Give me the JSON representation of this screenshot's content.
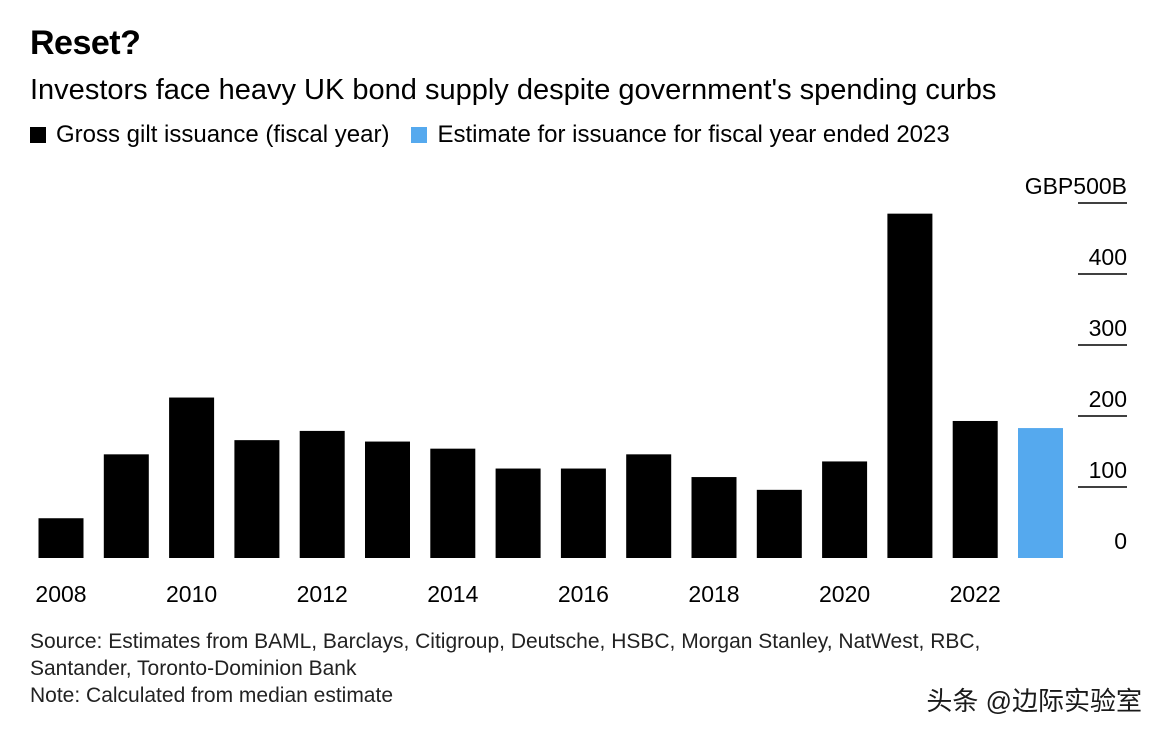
{
  "title": "Reset?",
  "subtitle": "Investors face heavy UK bond supply despite government's spending curbs",
  "legend": [
    {
      "label": "Gross gilt issuance (fiscal year)",
      "color": "#000000"
    },
    {
      "label": "Estimate for issuance for fiscal year ended 2023",
      "color": "#55a9ee"
    }
  ],
  "source_line1": "Source: Estimates from BAML, Barclays, Citigroup, Deutsche, HSBC, Morgan Stanley, NatWest, RBC,",
  "source_line2": "Santander, Toronto-Dominion Bank",
  "note": "Note: Calculated from median estimate",
  "watermark": "头条 @边际实验室",
  "chart_data": {
    "type": "bar",
    "categories": [
      "2008",
      "2009",
      "2010",
      "2011",
      "2012",
      "2013",
      "2014",
      "2015",
      "2016",
      "2017",
      "2018",
      "2019",
      "2020",
      "2021",
      "2022",
      "2023"
    ],
    "values": [
      56,
      146,
      226,
      166,
      179,
      164,
      154,
      126,
      126,
      146,
      114,
      96,
      136,
      485,
      193,
      183
    ],
    "estimate_index": 15,
    "x_tick_labels": [
      "2008",
      "",
      "2010",
      "",
      "2012",
      "",
      "2014",
      "",
      "2016",
      "",
      "2018",
      "",
      "2020",
      "",
      "2022",
      ""
    ],
    "y_ticks": [
      0,
      100,
      200,
      300,
      400,
      500
    ],
    "y_tick_labels": [
      "0",
      "100",
      "200",
      "300",
      "400",
      "GBP500B"
    ],
    "ylim": [
      0,
      500
    ],
    "colors": {
      "actual": "#000000",
      "estimate": "#55a9ee",
      "grid": "#000000"
    }
  }
}
